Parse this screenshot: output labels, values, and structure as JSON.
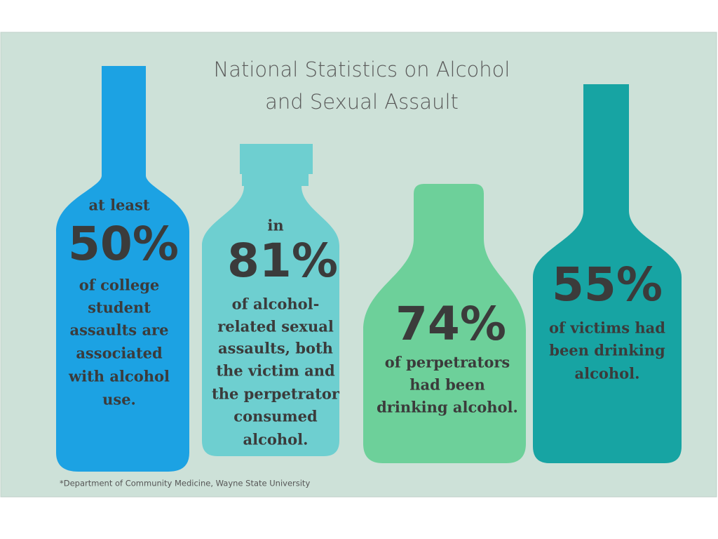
{
  "title": [
    "National Statistics on Alcohol",
    "and Sexual Assault"
  ],
  "bottles": [
    {
      "intro": "at least",
      "stat": "50%",
      "text": [
        "of college",
        "student",
        "assaults are",
        "associated",
        "with alcohol",
        "use."
      ]
    },
    {
      "intro": "in",
      "stat": "81%",
      "text": [
        "of alcohol-",
        "related sexual",
        "assaults, both",
        "the victim and",
        "the perpetrator",
        "consumed",
        "alcohol."
      ]
    },
    {
      "stat": "74%",
      "text": [
        "of perpetrators",
        "had been",
        "drinking alcohol."
      ]
    },
    {
      "stat": "55%",
      "text": [
        "of victims had",
        "been drinking",
        "alcohol."
      ]
    }
  ],
  "footnote": "*Department of Community Medicine, Wayne State University"
}
